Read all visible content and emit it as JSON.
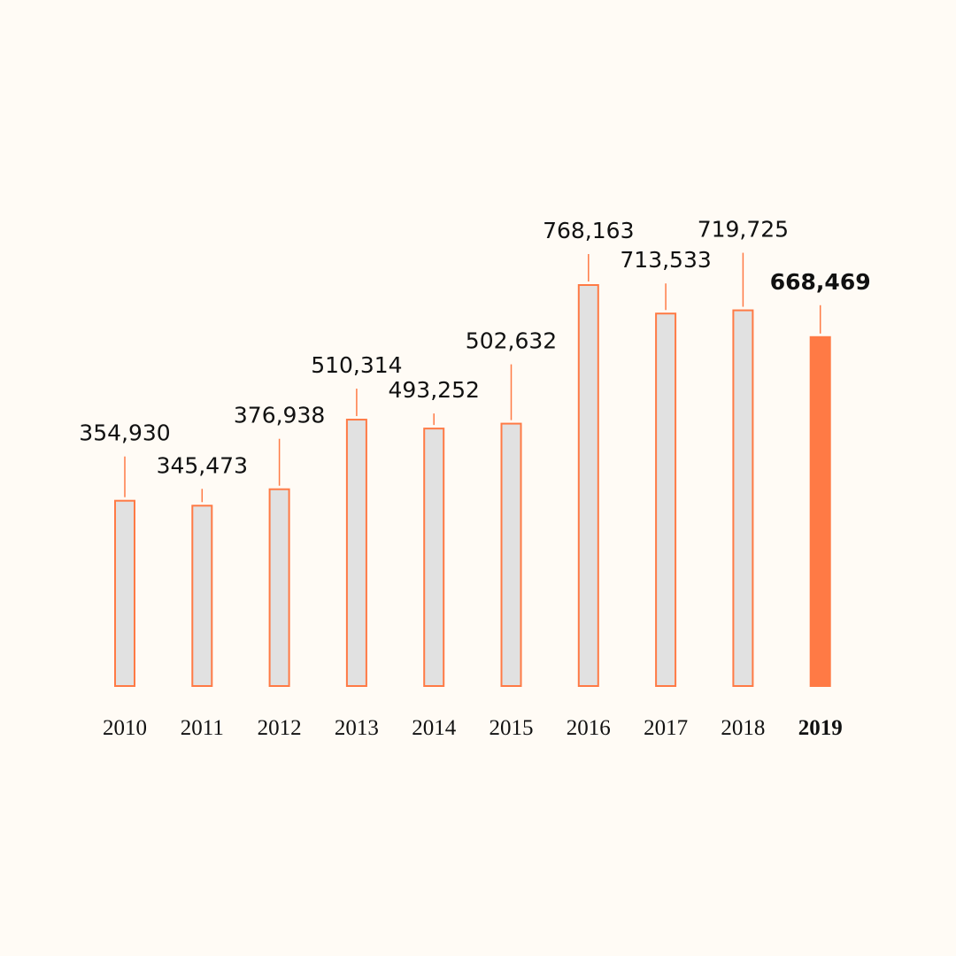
{
  "chart_data": {
    "type": "bar",
    "categories": [
      "2010",
      "2011",
      "2012",
      "2013",
      "2014",
      "2015",
      "2016",
      "2017",
      "2018",
      "2019"
    ],
    "values": [
      354930,
      345473,
      376938,
      510314,
      493252,
      502632,
      768163,
      713533,
      719725,
      668469
    ],
    "value_labels": [
      "354,930",
      "345,473",
      "376,938",
      "510,314",
      "493,252",
      "502,632",
      "768,163",
      "713,533",
      "719,725",
      "668,469"
    ],
    "highlight_index": 9,
    "title": "",
    "xlabel": "",
    "ylabel": "",
    "ylim": [
      0,
      768163
    ],
    "grid": false,
    "legend": "none"
  },
  "colors": {
    "background": "#FFFBF5",
    "bar_fill": "#E1E1E1",
    "accent": "#FF7A45",
    "text": "#111111"
  }
}
